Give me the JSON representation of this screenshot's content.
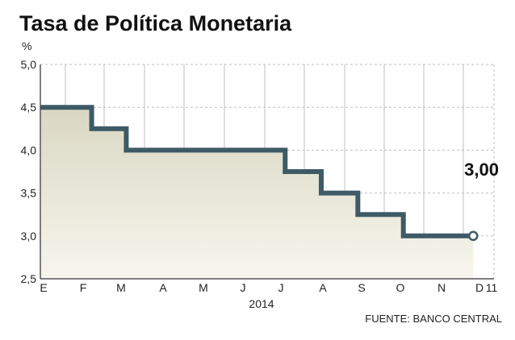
{
  "chart_data": {
    "type": "line",
    "step": true,
    "title": "Tasa de Política Monetaria",
    "y_unit_label": "%",
    "ylim": [
      2.5,
      5.0
    ],
    "y_ticks": [
      "5,0",
      "4,5",
      "4,0",
      "3,5",
      "3,0",
      "2,5"
    ],
    "y_tick_values": [
      5.0,
      4.5,
      4.0,
      3.5,
      3.0,
      2.5
    ],
    "x_ticks": [
      "E",
      "F",
      "M",
      "A",
      "M",
      "J",
      "J",
      "A",
      "S",
      "O",
      "N",
      "D"
    ],
    "x_end_label": "11",
    "x_year_label": "2014",
    "series": [
      {
        "x": [
          "2014-01-01",
          "2014-02-13",
          "2014-02-20",
          "2014-03-18",
          "2014-07-17",
          "2014-08-14",
          "2014-09-11",
          "2014-10-16",
          "2014-12-11"
        ],
        "y": [
          4.5,
          4.5,
          4.25,
          4.0,
          3.75,
          3.5,
          3.25,
          3.0,
          3.0
        ]
      }
    ],
    "last_value_label": "3,00",
    "source": "FUENTE: BANCO CENTRAL",
    "grid": true,
    "colors": {
      "line": "#3d5a66",
      "area_top": "#d9d7c2",
      "area_bottom": "#f7f6ee",
      "grid": "#bfbfbf",
      "axis": "#555555"
    }
  }
}
